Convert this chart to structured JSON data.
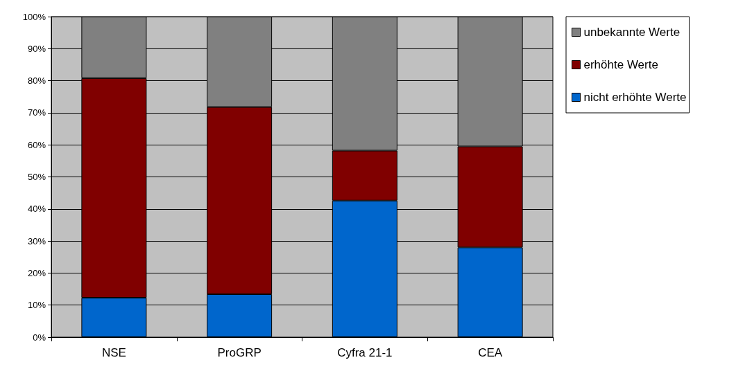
{
  "chart_data": {
    "type": "bar",
    "stacked": true,
    "categories": [
      "NSE",
      "ProGRP",
      "Cyfra 21-1",
      "CEA"
    ],
    "series": [
      {
        "name": "nicht erhöhte Werte",
        "color": "#0066cc",
        "values": [
          12.3,
          13.4,
          42.6,
          28.0
        ]
      },
      {
        "name": "erhöhte Werte",
        "color": "#800000",
        "values": [
          68.5,
          58.4,
          15.6,
          31.5
        ]
      },
      {
        "name": "unbekannte Werte",
        "color": "#808080",
        "values": [
          19.2,
          28.2,
          41.8,
          40.5
        ]
      }
    ],
    "ylim": [
      0,
      100
    ],
    "yticks": [
      {
        "value": 0,
        "label": "0%"
      },
      {
        "value": 10,
        "label": "10%"
      },
      {
        "value": 20,
        "label": "20%"
      },
      {
        "value": 30,
        "label": "30%"
      },
      {
        "value": 40,
        "label": "40%"
      },
      {
        "value": 50,
        "label": "50%"
      },
      {
        "value": 60,
        "label": "60%"
      },
      {
        "value": 70,
        "label": "70%"
      },
      {
        "value": 80,
        "label": "80%"
      },
      {
        "value": 90,
        "label": "90%"
      },
      {
        "value": 100,
        "label": "100%"
      }
    ],
    "grid": "y",
    "legend": "right"
  }
}
